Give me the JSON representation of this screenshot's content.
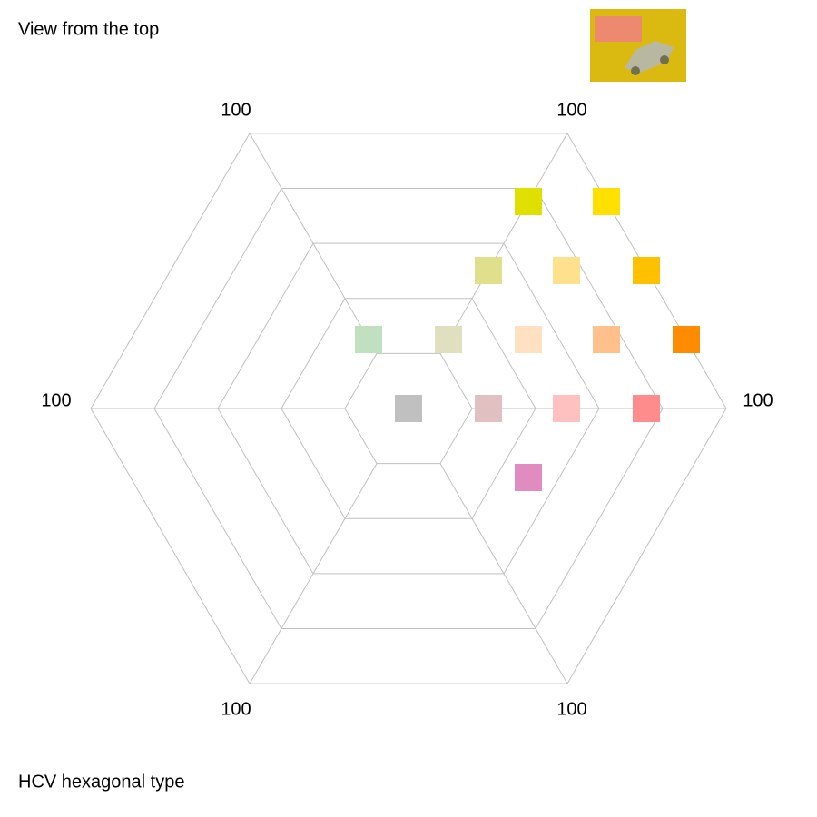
{
  "header": {
    "title": "View from the top"
  },
  "axis_labels": [
    "100",
    "100",
    "100",
    "100",
    "100",
    "100"
  ],
  "swatches": [
    "#e0e000",
    "#ffe000",
    "#e0e08c",
    "#ffe08c",
    "#ffc000",
    "#c0e0c0",
    "#e0e0c0",
    "#ffe0c0",
    "#ffc08c",
    "#ff8c00",
    "#c0c0c0",
    "#e0c0c0",
    "#ffc0c0",
    "#ff8c8c",
    "#e08cc0"
  ],
  "footer": {
    "caption": "HCV hexagonal type"
  }
}
